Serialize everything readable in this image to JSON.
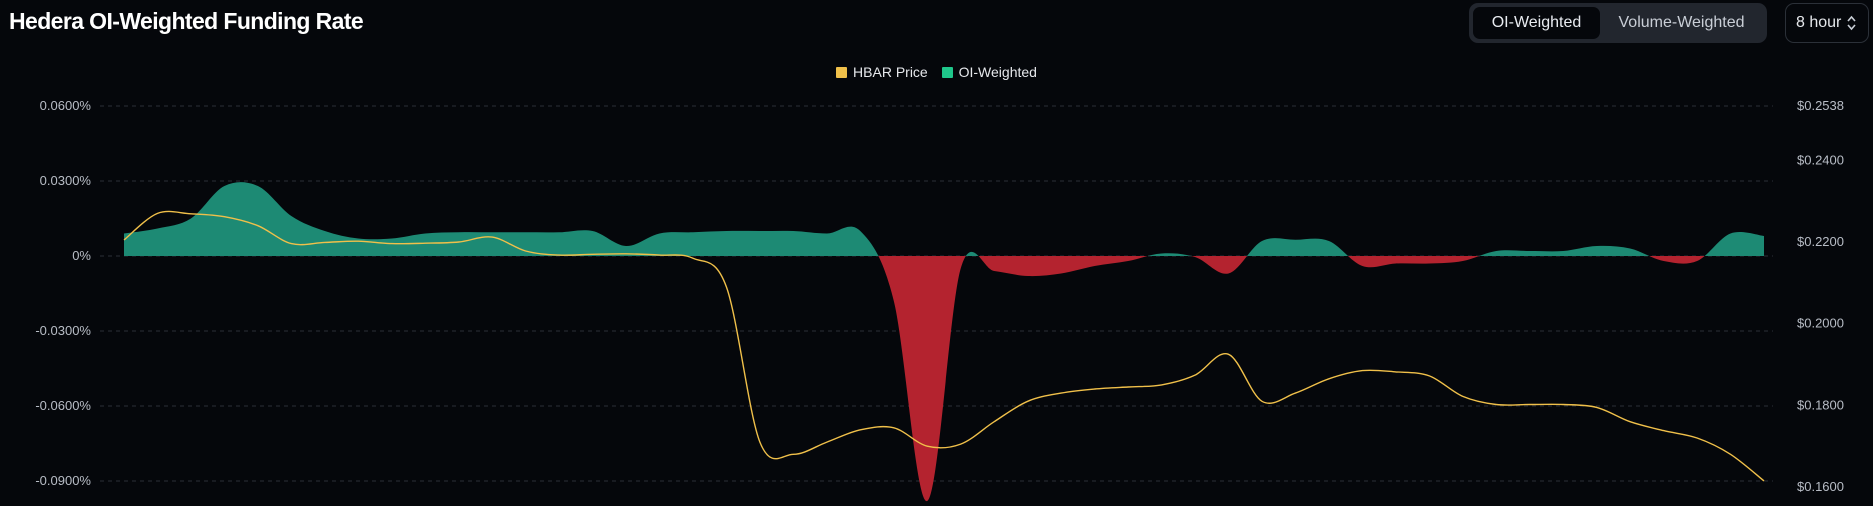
{
  "header": {
    "title": "Hedera OI-Weighted Funding Rate",
    "toggle": [
      {
        "label": "OI-Weighted",
        "active": true
      },
      {
        "label": "Volume-Weighted",
        "active": false
      }
    ],
    "period": "8 hour",
    "period_icon": "chevron-up-down-icon"
  },
  "colors": {
    "background": "#05070b",
    "price_line": "#f0c04a",
    "positive_fill": "#1d8a74",
    "negative_fill": "#b4232f",
    "oi_legend": "#1fc78b",
    "price_legend": "#f0c04a"
  },
  "chart_data": {
    "type": "area",
    "legend_position": "top-center",
    "grid": true,
    "y_left": {
      "ticks": [
        "0.0600%",
        "0.0300%",
        "0%",
        "-0.0300%",
        "-0.0600%",
        "-0.0900%"
      ],
      "range": [
        -0.1,
        0.06
      ]
    },
    "y_right": {
      "ticks": [
        "$0.2538",
        "$0.2400",
        "$0.2200",
        "$0.2000",
        "$0.1800",
        "$0.1600"
      ],
      "range": [
        0.158,
        0.2538
      ]
    },
    "series": [
      {
        "name": "OI-Weighted",
        "axis": "left",
        "unit": "%",
        "values": [
          0.009,
          0.011,
          0.015,
          0.028,
          0.028,
          0.016,
          0.01,
          0.007,
          0.007,
          0.009,
          0.0095,
          0.0095,
          0.0095,
          0.0095,
          0.01,
          0.004,
          0.009,
          0.0095,
          0.01,
          0.01,
          0.01,
          0.009,
          0.01,
          -0.018,
          -0.098,
          -0.005,
          -0.006,
          -0.008,
          -0.007,
          -0.004,
          -0.002,
          0.001,
          -0.0004,
          -0.007,
          0.006,
          0.0065,
          0.006,
          -0.004,
          -0.003,
          -0.003,
          -0.002,
          0.002,
          0.002,
          0.002,
          0.004,
          0.003,
          -0.002,
          -0.002,
          0.009,
          0.008
        ]
      },
      {
        "name": "HBAR Price",
        "axis": "right",
        "unit": "$",
        "values": [
          0.2205,
          0.227,
          0.2269,
          0.2262,
          0.224,
          0.2196,
          0.2199,
          0.2202,
          0.2196,
          0.2197,
          0.22,
          0.2212,
          0.2178,
          0.2168,
          0.217,
          0.2171,
          0.2168,
          0.216,
          0.209,
          0.171,
          0.168,
          0.171,
          0.174,
          0.1745,
          0.17,
          0.1705,
          0.176,
          0.181,
          0.183,
          0.184,
          0.1845,
          0.185,
          0.1874,
          0.1925,
          0.181,
          0.183,
          0.1865,
          0.1885,
          0.1882,
          0.1872,
          0.1822,
          0.1802,
          0.1802,
          0.1802,
          0.1795,
          0.176,
          0.1738,
          0.172,
          0.168,
          0.1615
        ]
      }
    ]
  }
}
